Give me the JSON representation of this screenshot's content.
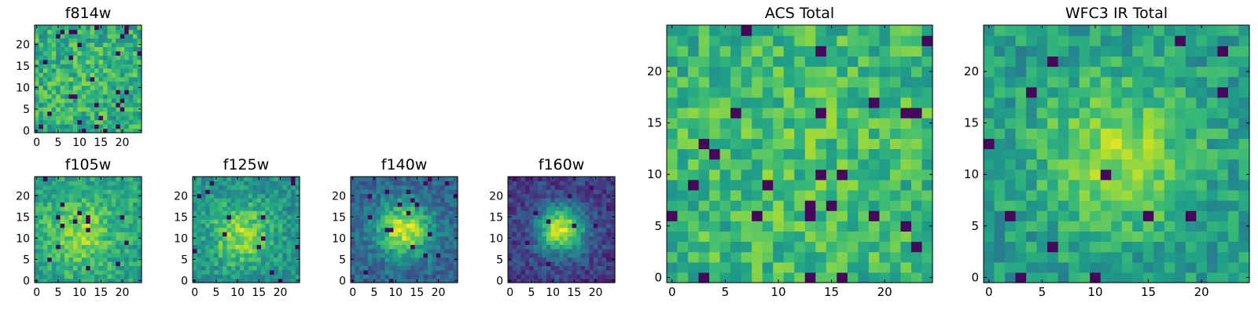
{
  "colors": {
    "colormap": "viridis",
    "viridis_stops": [
      "#440154",
      "#482878",
      "#3e4989",
      "#31688e",
      "#26828e",
      "#1f9e89",
      "#35b779",
      "#6ece58",
      "#b5de2b",
      "#fde725"
    ],
    "frame": "#000000",
    "background": "#ffffff"
  },
  "chart_data": [
    {
      "id": "f814w",
      "type": "heatmap",
      "title": "f814w",
      "grid_size": 25,
      "xticks": [
        0,
        5,
        10,
        15,
        20
      ],
      "yticks": [
        0,
        5,
        10,
        15,
        20
      ],
      "xlim": [
        -0.5,
        24.5
      ],
      "ylim": [
        -0.5,
        24.5
      ],
      "colormap": "viridis",
      "profile": {
        "peak_x": 12,
        "peak_y": 12,
        "sigma": 6,
        "amplitude": 0.05,
        "base": 0.62,
        "noise": 0.18,
        "seed": 11,
        "dark_prob": 0.05
      }
    },
    {
      "id": "f105w",
      "type": "heatmap",
      "title": "f105w",
      "grid_size": 25,
      "xticks": [
        0,
        5,
        10,
        15,
        20
      ],
      "yticks": [
        0,
        5,
        10,
        15,
        20
      ],
      "xlim": [
        -0.5,
        24.5
      ],
      "ylim": [
        -0.5,
        24.5
      ],
      "colormap": "viridis",
      "profile": {
        "peak_x": 10,
        "peak_y": 11,
        "sigma": 5.5,
        "amplitude": 0.25,
        "base": 0.58,
        "noise": 0.14,
        "seed": 23,
        "dark_prob": 0.02
      }
    },
    {
      "id": "f125w",
      "type": "heatmap",
      "title": "f125w",
      "grid_size": 25,
      "xticks": [
        0,
        5,
        10,
        15,
        20
      ],
      "yticks": [
        0,
        5,
        10,
        15,
        20
      ],
      "xlim": [
        -0.5,
        24.5
      ],
      "ylim": [
        -0.5,
        24.5
      ],
      "colormap": "viridis",
      "profile": {
        "peak_x": 11,
        "peak_y": 11,
        "sigma": 5,
        "amplitude": 0.35,
        "base": 0.5,
        "noise": 0.14,
        "seed": 37,
        "dark_prob": 0.02
      }
    },
    {
      "id": "f140w",
      "type": "heatmap",
      "title": "f140w",
      "grid_size": 25,
      "xticks": [
        0,
        5,
        10,
        15,
        20
      ],
      "yticks": [
        0,
        5,
        10,
        15,
        20
      ],
      "xlim": [
        -0.5,
        24.5
      ],
      "ylim": [
        -0.5,
        24.5
      ],
      "colormap": "viridis",
      "profile": {
        "peak_x": 12,
        "peak_y": 12,
        "sigma": 4.5,
        "amplitude": 0.6,
        "base": 0.32,
        "noise": 0.13,
        "seed": 41,
        "dark_prob": 0.03
      }
    },
    {
      "id": "f160w",
      "type": "heatmap",
      "title": "f160w",
      "grid_size": 25,
      "xticks": [
        0,
        5,
        10,
        15,
        20
      ],
      "yticks": [
        0,
        5,
        10,
        15,
        20
      ],
      "xlim": [
        -0.5,
        24.5
      ],
      "ylim": [
        -0.5,
        24.5
      ],
      "colormap": "viridis",
      "profile": {
        "peak_x": 12,
        "peak_y": 12,
        "sigma": 4,
        "amplitude": 0.75,
        "base": 0.18,
        "noise": 0.12,
        "seed": 53,
        "dark_prob": 0.02
      }
    },
    {
      "id": "acs-total",
      "type": "heatmap",
      "title": "ACS Total",
      "grid_size": 25,
      "xticks": [
        0,
        5,
        10,
        15,
        20
      ],
      "yticks": [
        0,
        5,
        10,
        15,
        20
      ],
      "xlim": [
        -0.5,
        24.5
      ],
      "ylim": [
        -0.5,
        24.5
      ],
      "colormap": "viridis",
      "profile": {
        "peak_x": 12,
        "peak_y": 12,
        "sigma": 6,
        "amplitude": 0.05,
        "base": 0.66,
        "noise": 0.16,
        "seed": 67,
        "dark_prob": 0.025
      }
    },
    {
      "id": "wfc3-ir-total",
      "type": "heatmap",
      "title": "WFC3 IR Total",
      "grid_size": 25,
      "xticks": [
        0,
        5,
        10,
        15,
        20
      ],
      "yticks": [
        0,
        5,
        10,
        15,
        20
      ],
      "xlim": [
        -0.5,
        24.5
      ],
      "ylim": [
        -0.5,
        24.5
      ],
      "colormap": "viridis",
      "profile": {
        "peak_x": 12,
        "peak_y": 12,
        "sigma": 5,
        "amplitude": 0.3,
        "base": 0.55,
        "noise": 0.14,
        "seed": 79,
        "dark_prob": 0.025
      }
    }
  ]
}
